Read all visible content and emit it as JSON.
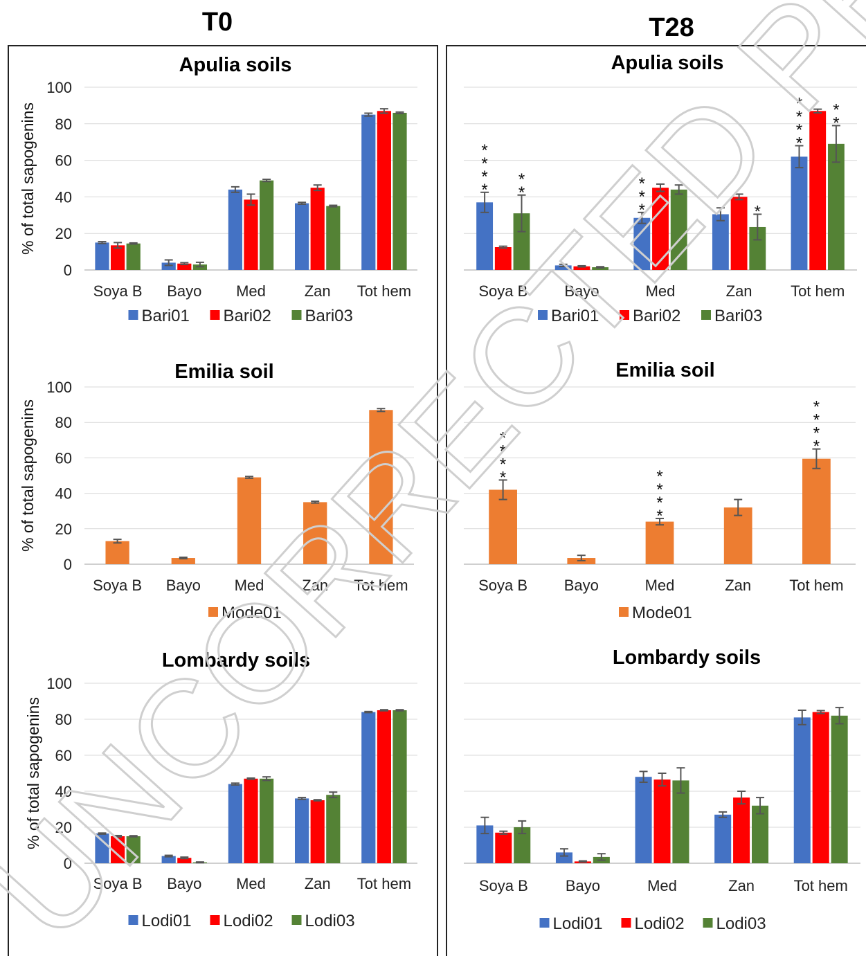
{
  "columns": [
    {
      "title": "T0"
    },
    {
      "title": "T28"
    }
  ],
  "watermark": "UNCORRECTED PROOF",
  "colors": {
    "Bari01": "#4472C4",
    "Bari02": "#FF0000",
    "Bari03": "#548235",
    "Mode01": "#ED7D31",
    "Lodi01": "#4472C4",
    "Lodi02": "#FF0000",
    "Lodi03": "#548235",
    "error_bar": "#555555",
    "grid": "#d9d9d9",
    "axis": "#bfbfbf"
  },
  "chart_data": [
    {
      "type": "bar",
      "panel": "T0",
      "title": "Apulia soils",
      "ylabel": "% of total sapogenins",
      "ylim": [
        0,
        100
      ],
      "yticks": [
        0,
        20,
        40,
        60,
        80,
        100
      ],
      "categories": [
        "Soya B",
        "Bayo",
        "Med",
        "Zan",
        "Tot hem"
      ],
      "series": [
        {
          "name": "Bari01",
          "values": [
            15,
            4,
            44,
            36.5,
            85
          ],
          "errors": [
            0.5,
            1.5,
            1.5,
            0.5,
            0.8
          ]
        },
        {
          "name": "Bari02",
          "values": [
            13.5,
            3.5,
            38.5,
            45,
            87
          ],
          "errors": [
            1.5,
            0.5,
            3,
            1.5,
            1.2
          ]
        },
        {
          "name": "Bari03",
          "values": [
            14.5,
            3,
            49,
            35,
            86
          ],
          "errors": [
            0.3,
            1.2,
            0.6,
            0.4,
            0.4
          ]
        }
      ],
      "annotations": []
    },
    {
      "type": "bar",
      "panel": "T28",
      "title": "Apulia soils",
      "ylabel": "",
      "ylim": [
        0,
        100
      ],
      "yticks": [],
      "categories": [
        "Soya B",
        "Bayo",
        "Med",
        "Zan",
        "Tot hem"
      ],
      "series": [
        {
          "name": "Bari01",
          "values": [
            37,
            2.5,
            28.5,
            30.5,
            62
          ],
          "errors": [
            5.5,
            0.6,
            3,
            3.5,
            6
          ]
        },
        {
          "name": "Bari02",
          "values": [
            12.5,
            2,
            45,
            40,
            87
          ],
          "errors": [
            0.5,
            0.3,
            2,
            1.5,
            1
          ]
        },
        {
          "name": "Bari03",
          "values": [
            31,
            1.5,
            44,
            23.5,
            69
          ],
          "errors": [
            10,
            0.3,
            2.5,
            7,
            10
          ]
        }
      ],
      "annotations": [
        {
          "category": 0,
          "series": 0,
          "text": "****"
        },
        {
          "category": 0,
          "series": 2,
          "text": "**"
        },
        {
          "category": 2,
          "series": 0,
          "text": "***"
        },
        {
          "category": 3,
          "series": 2,
          "text": "*"
        },
        {
          "category": 4,
          "series": 0,
          "text": "****"
        },
        {
          "category": 4,
          "series": 2,
          "text": "**"
        }
      ]
    },
    {
      "type": "bar",
      "panel": "T0",
      "title": "Emilia soil",
      "ylabel": "% of total sapogenins",
      "ylim": [
        0,
        100
      ],
      "yticks": [
        0,
        20,
        40,
        60,
        80,
        100
      ],
      "categories": [
        "Soya B",
        "Bayo",
        "Med",
        "Zan",
        "Tot hem"
      ],
      "series": [
        {
          "name": "Mode01",
          "values": [
            13,
            3.5,
            49,
            35,
            87
          ],
          "errors": [
            1,
            0.4,
            0.5,
            0.5,
            0.8
          ]
        }
      ],
      "annotations": []
    },
    {
      "type": "bar",
      "panel": "T28",
      "title": "Emilia soil",
      "ylabel": "",
      "ylim": [
        0,
        100
      ],
      "yticks": [],
      "categories": [
        "Soya B",
        "Bayo",
        "Med",
        "Zan",
        "Tot hem"
      ],
      "series": [
        {
          "name": "Mode01",
          "values": [
            42,
            3.5,
            24,
            32,
            59.5
          ],
          "errors": [
            5.5,
            1.5,
            1.8,
            4.5,
            5.5
          ]
        }
      ],
      "annotations": [
        {
          "category": 0,
          "series": 0,
          "text": "****"
        },
        {
          "category": 2,
          "series": 0,
          "text": "****"
        },
        {
          "category": 4,
          "series": 0,
          "text": "****"
        }
      ]
    },
    {
      "type": "bar",
      "panel": "T0",
      "title": "Lombardy soils",
      "ylabel": "% of total sapogenins",
      "ylim": [
        0,
        100
      ],
      "yticks": [
        0,
        20,
        40,
        60,
        80,
        100
      ],
      "categories": [
        "Soya B",
        "Bayo",
        "Med",
        "Zan",
        "Tot hem"
      ],
      "series": [
        {
          "name": "Lodi01",
          "values": [
            16.5,
            4,
            44,
            36,
            84
          ],
          "errors": [
            0.3,
            0.4,
            0.5,
            0.5,
            0.3
          ]
        },
        {
          "name": "Lodi02",
          "values": [
            15,
            3,
            47,
            35,
            85
          ],
          "errors": [
            0.4,
            0.4,
            0.3,
            0.3,
            0.3
          ]
        },
        {
          "name": "Lodi03",
          "values": [
            15,
            0.5,
            47,
            38,
            85
          ],
          "errors": [
            0.3,
            0.2,
            1,
            1.5,
            0.3
          ]
        }
      ],
      "annotations": []
    },
    {
      "type": "bar",
      "panel": "T28",
      "title": "Lombardy soils",
      "ylabel": "",
      "ylim": [
        0,
        100
      ],
      "yticks": [],
      "categories": [
        "Soya B",
        "Bayo",
        "Med",
        "Zan",
        "Tot hem"
      ],
      "series": [
        {
          "name": "Lodi01",
          "values": [
            21,
            6,
            48,
            27,
            81
          ],
          "errors": [
            4.5,
            2,
            3,
            1.5,
            4
          ]
        },
        {
          "name": "Lodi02",
          "values": [
            17,
            1,
            46.5,
            36.5,
            84
          ],
          "errors": [
            0.8,
            0.3,
            3.5,
            3.5,
            0.8
          ]
        },
        {
          "name": "Lodi03",
          "values": [
            20,
            3.5,
            46,
            32,
            82
          ],
          "errors": [
            3.5,
            1.8,
            7,
            4.5,
            4.5
          ]
        }
      ],
      "annotations": []
    }
  ]
}
